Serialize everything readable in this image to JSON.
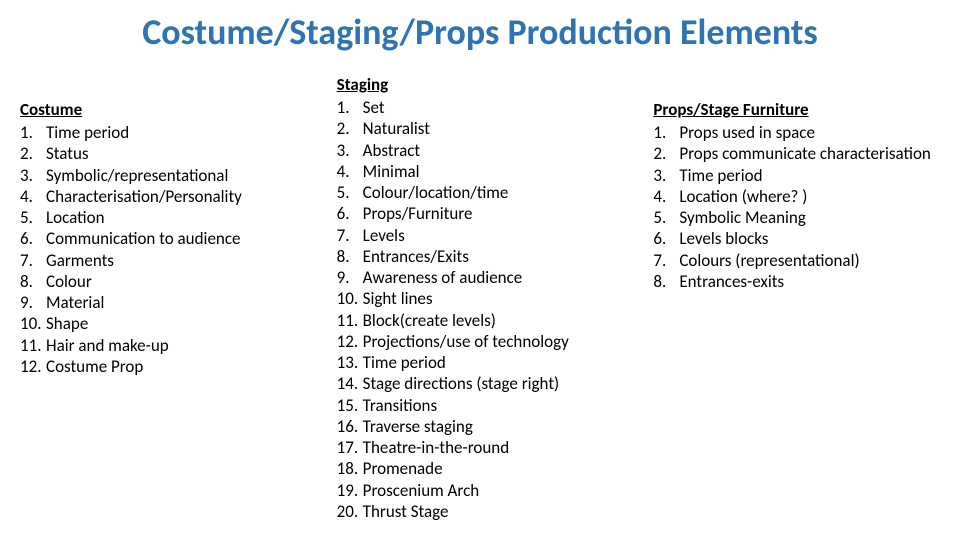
{
  "title": "Costume/Staging/Props Production Elements",
  "title_color": "#2e74b5",
  "background_color": "#ffffff",
  "text_color": "#000000",
  "font_family": "Calibri",
  "title_fontsize": 36,
  "body_fontsize": 17,
  "columns": {
    "costume": {
      "heading": "Costume",
      "items": [
        "Time period",
        "Status",
        "Symbolic/representational",
        "Characterisation/Personality",
        "Location",
        "Communication to audience",
        "Garments",
        "Colour",
        "Material",
        "Shape",
        "Hair and make-up",
        "Costume Prop"
      ]
    },
    "staging": {
      "heading": "Staging",
      "items": [
        "Set",
        "Naturalist",
        "Abstract",
        "Minimal",
        "Colour/location/time",
        "Props/Furniture",
        "Levels",
        "Entrances/Exits",
        "Awareness of audience",
        "Sight lines",
        "Block(create levels)",
        "Projections/use of technology",
        "Time period",
        "Stage directions (stage right)",
        "Transitions",
        "Traverse staging",
        "Theatre-in-the-round",
        "Promenade",
        "Proscenium Arch",
        "Thrust Stage"
      ]
    },
    "props": {
      "heading": "Props/Stage Furniture",
      "items": [
        "Props used in space",
        "Props communicate characterisation",
        "Time period",
        "Location (where? )",
        "Symbolic Meaning",
        "Levels blocks",
        "Colours (representational)",
        "Entrances-exits"
      ]
    }
  }
}
